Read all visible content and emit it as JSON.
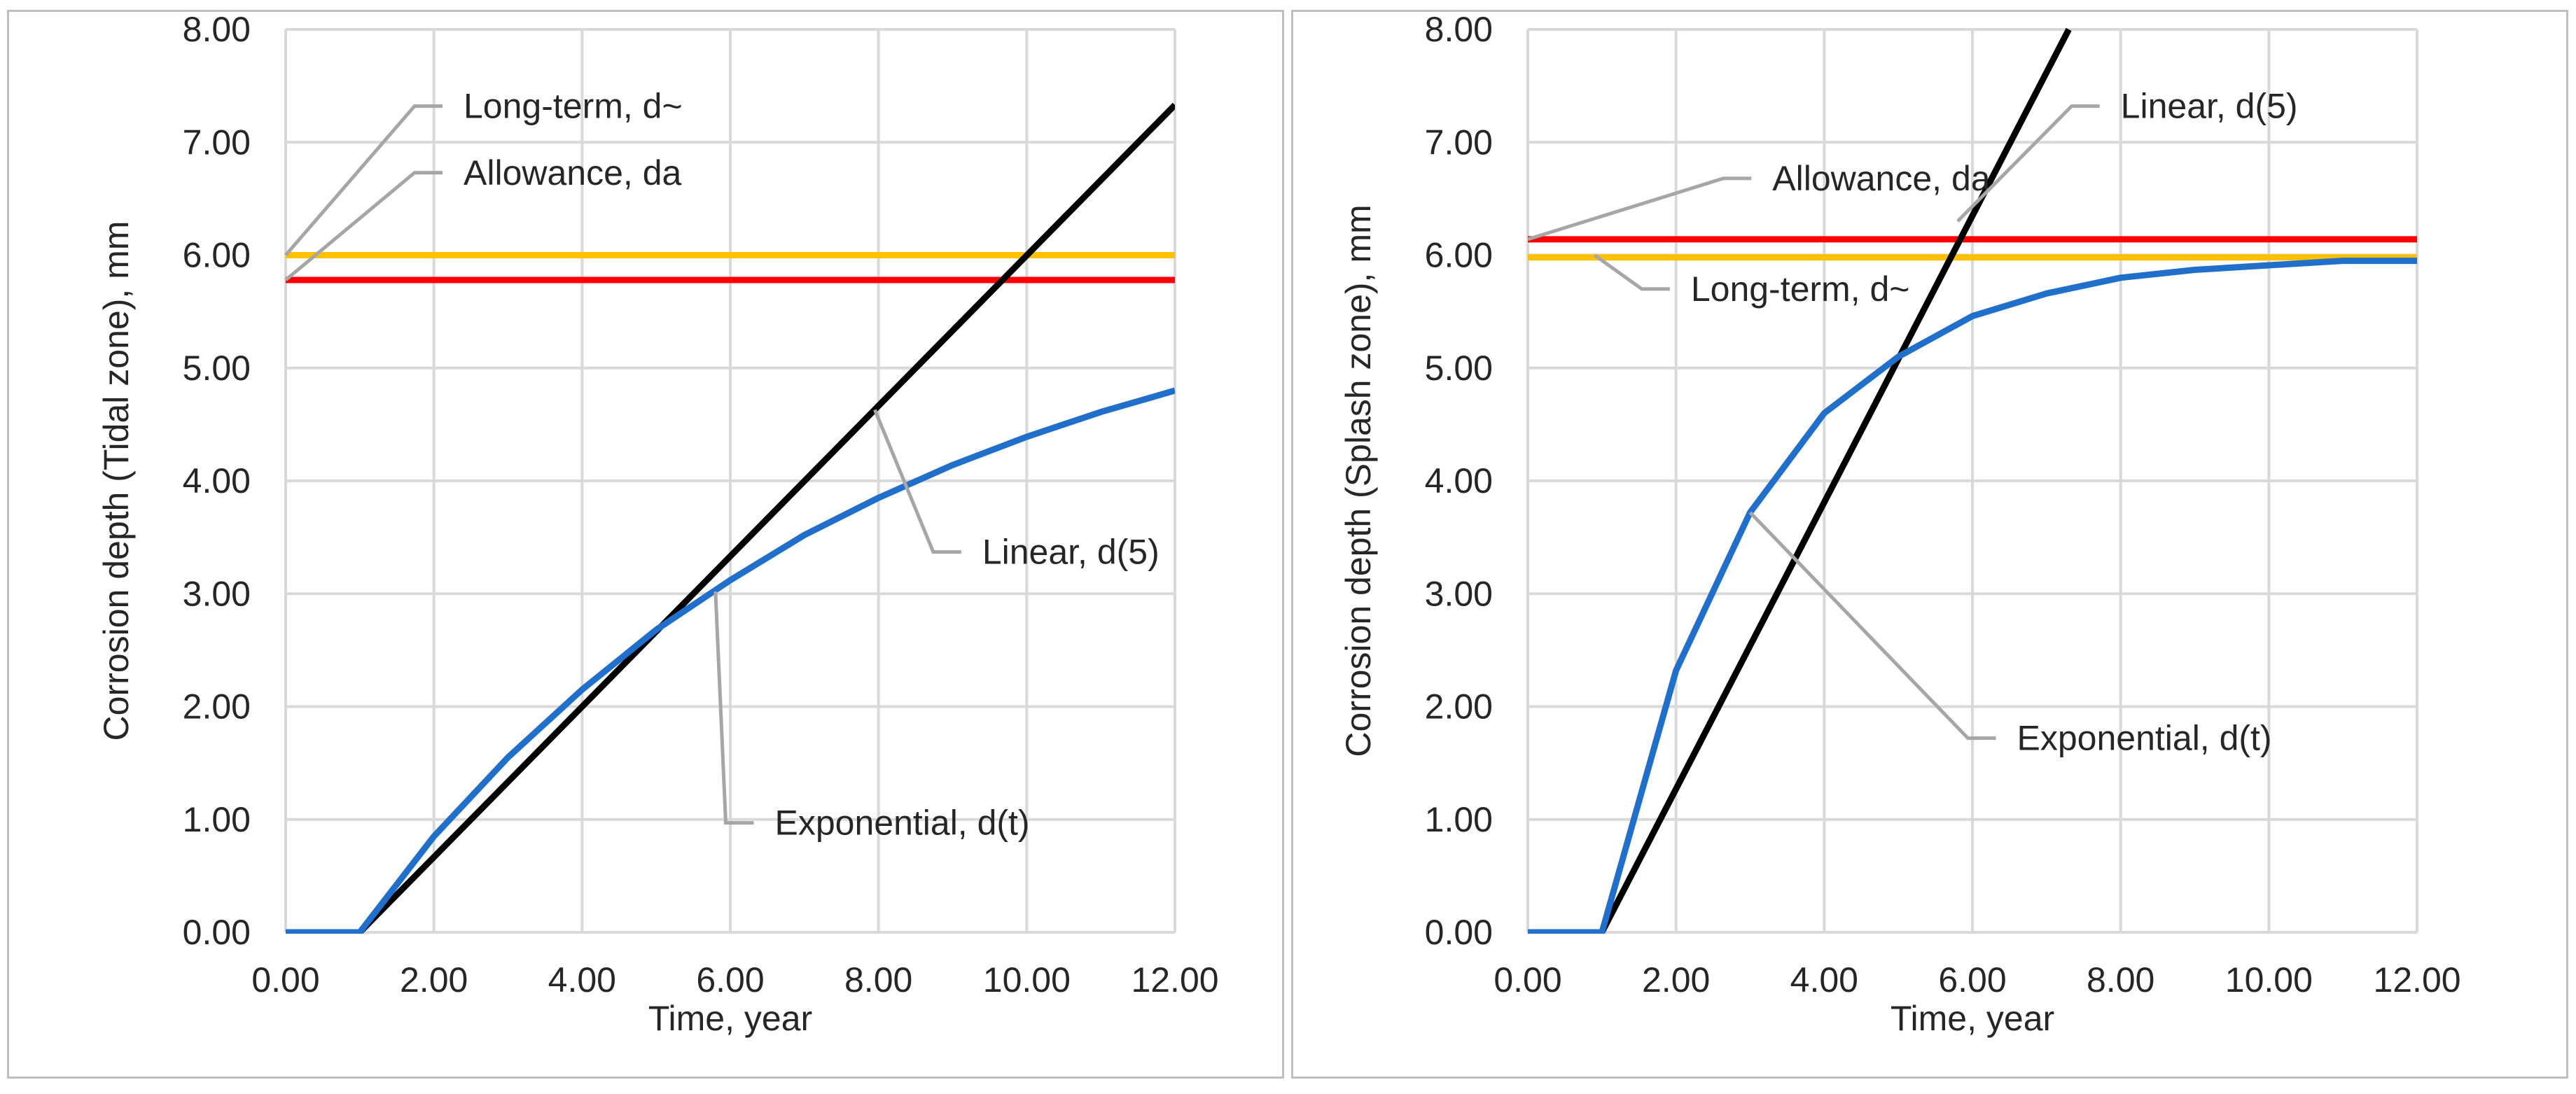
{
  "chart_data": [
    {
      "type": "line",
      "xlabel": "Time, year",
      "ylabel": "Corrosion depth (Tidal zone), mm",
      "xlim": [
        0,
        12
      ],
      "ylim": [
        0,
        8
      ],
      "xticks": [
        "0.00",
        "2.00",
        "4.00",
        "6.00",
        "8.00",
        "10.00",
        "12.00"
      ],
      "yticks": [
        "0.00",
        "1.00",
        "2.00",
        "3.00",
        "4.00",
        "5.00",
        "6.00",
        "7.00",
        "8.00"
      ],
      "grid": true,
      "series": [
        {
          "name": "Long-term, d~",
          "color": "#ffc000",
          "x": [
            0,
            12
          ],
          "y": [
            6.0,
            6.0
          ]
        },
        {
          "name": "Allowance, da",
          "color": "#ff0000",
          "x": [
            0,
            12
          ],
          "y": [
            5.78,
            5.78
          ]
        },
        {
          "name": "Linear, d(5)",
          "color": "#000000",
          "x": [
            0,
            1,
            12
          ],
          "y": [
            0,
            0,
            7.33
          ]
        },
        {
          "name": "Exponential, d(t)",
          "color": "#1f6fcb",
          "x": [
            0,
            1,
            2,
            3,
            4,
            5,
            6,
            7,
            8,
            9,
            10,
            11,
            12
          ],
          "y": [
            0,
            0,
            0.85,
            1.55,
            2.15,
            2.68,
            3.12,
            3.52,
            3.85,
            4.14,
            4.39,
            4.61,
            4.8
          ]
        }
      ],
      "annotations": [
        {
          "text": "Long-term, d~",
          "series": "Long-term, d~",
          "point": [
            0,
            6.0
          ],
          "label_at": [
            2.4,
            7.32
          ]
        },
        {
          "text": "Allowance, da",
          "series": "Allowance, da",
          "point": [
            0,
            5.78
          ],
          "label_at": [
            2.4,
            6.73
          ]
        },
        {
          "text": "Linear, d(5)",
          "series": "Linear, d(5)",
          "point": [
            7.95,
            4.63
          ],
          "label_at": [
            9.4,
            3.37
          ]
        },
        {
          "text": "Exponential, d(t)",
          "series": "Exponential, d(t)",
          "point": [
            5.8,
            3.02
          ],
          "label_at": [
            6.6,
            0.97
          ]
        }
      ]
    },
    {
      "type": "line",
      "xlabel": "Time, year",
      "ylabel": "Corrosion depth (Splash zone), mm",
      "xlim": [
        0,
        12
      ],
      "ylim": [
        0,
        8
      ],
      "xticks": [
        "0.00",
        "2.00",
        "4.00",
        "6.00",
        "8.00",
        "10.00",
        "12.00"
      ],
      "yticks": [
        "0.00",
        "1.00",
        "2.00",
        "3.00",
        "4.00",
        "5.00",
        "6.00",
        "7.00",
        "8.00"
      ],
      "grid": true,
      "series": [
        {
          "name": "Long-term, d~",
          "color": "#ffc000",
          "x": [
            0,
            12
          ],
          "y": [
            5.98,
            5.98
          ]
        },
        {
          "name": "Allowance, da",
          "color": "#ff0000",
          "x": [
            0,
            12
          ],
          "y": [
            6.14,
            6.14
          ]
        },
        {
          "name": "Linear, d(5)",
          "color": "#000000",
          "x": [
            0,
            1,
            7.3
          ],
          "y": [
            0,
            0,
            8.0
          ]
        },
        {
          "name": "Exponential, d(t)",
          "color": "#1f6fcb",
          "x": [
            0,
            1,
            2,
            3,
            4,
            5,
            6,
            7,
            8,
            9,
            10,
            11,
            12
          ],
          "y": [
            0,
            0,
            2.32,
            3.72,
            4.6,
            5.1,
            5.46,
            5.66,
            5.8,
            5.87,
            5.91,
            5.95,
            5.95
          ]
        }
      ],
      "annotations": [
        {
          "text": "Allowance, da",
          "series": "Allowance, da",
          "point": [
            0,
            6.14
          ],
          "label_at": [
            3.3,
            6.68
          ]
        },
        {
          "text": "Linear, d(5)",
          "series": "Linear, d(5)",
          "point": [
            5.8,
            6.3
          ],
          "label_at": [
            8.0,
            7.32
          ]
        },
        {
          "text": "Long-term, d~",
          "series": "Long-term, d~",
          "point": [
            0.9,
            6.0
          ],
          "label_at": [
            2.2,
            5.7
          ]
        },
        {
          "text": "Exponential, d(t)",
          "series": "Exponential, d(t)",
          "point": [
            3.0,
            3.72
          ],
          "label_at": [
            6.6,
            1.72
          ]
        }
      ]
    }
  ]
}
